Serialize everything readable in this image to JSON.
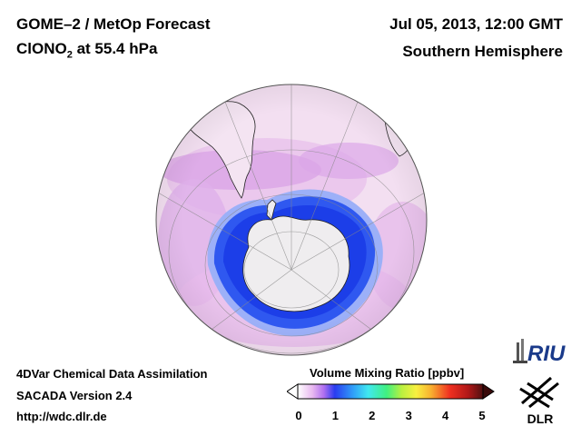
{
  "header": {
    "product": "GOME–2 / MetOp Forecast",
    "species_main": "ClONO",
    "species_sub": "2",
    "species_rest": " at 55.4 hPa",
    "date": "Jul 05, 2013, 12:00 GMT",
    "region": "Southern Hemisphere"
  },
  "footer": {
    "line1": "4DVar Chemical Data Assimilation",
    "line2": "SACADA Version 2.4",
    "line3": "http://wdc.dlr.de"
  },
  "colorbar": {
    "title": "Volume Mixing Ratio [ppbv]",
    "ticks": [
      "0",
      "1",
      "2",
      "3",
      "4",
      "5"
    ],
    "range": [
      0,
      5
    ]
  },
  "logos": {
    "riu": "RIU",
    "dlr": "DLR"
  },
  "colors": {
    "low_pink": "#f3dff1",
    "violet": "#d68ee8",
    "blue": "#2244ee",
    "antarctica": "#efedef"
  }
}
